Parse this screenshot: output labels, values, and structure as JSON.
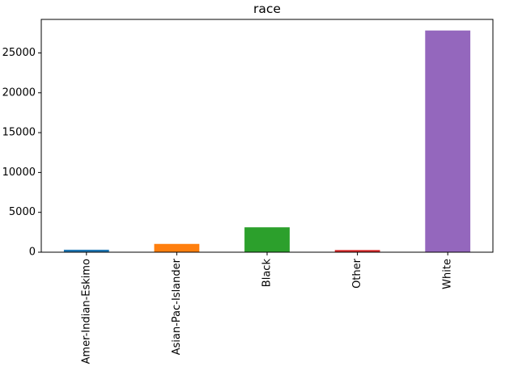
{
  "chart_data": {
    "type": "bar",
    "title": "race",
    "xlabel": "",
    "ylabel": "",
    "categories": [
      "Amer-Indian-Eskimo",
      "Asian-Pac-Islander",
      "Black",
      "Other",
      "White"
    ],
    "values": [
      311,
      1039,
      3124,
      271,
      27816
    ],
    "colors": [
      "#1f77b4",
      "#ff7f0e",
      "#2ca02c",
      "#d62728",
      "#9467bd"
    ],
    "ylim": [
      0,
      29207
    ],
    "yticks": [
      0,
      5000,
      10000,
      15000,
      20000,
      25000
    ],
    "ytick_labels": [
      "0",
      "5000",
      "10000",
      "15000",
      "20000",
      "25000"
    ],
    "grid": false,
    "legend": "none"
  }
}
